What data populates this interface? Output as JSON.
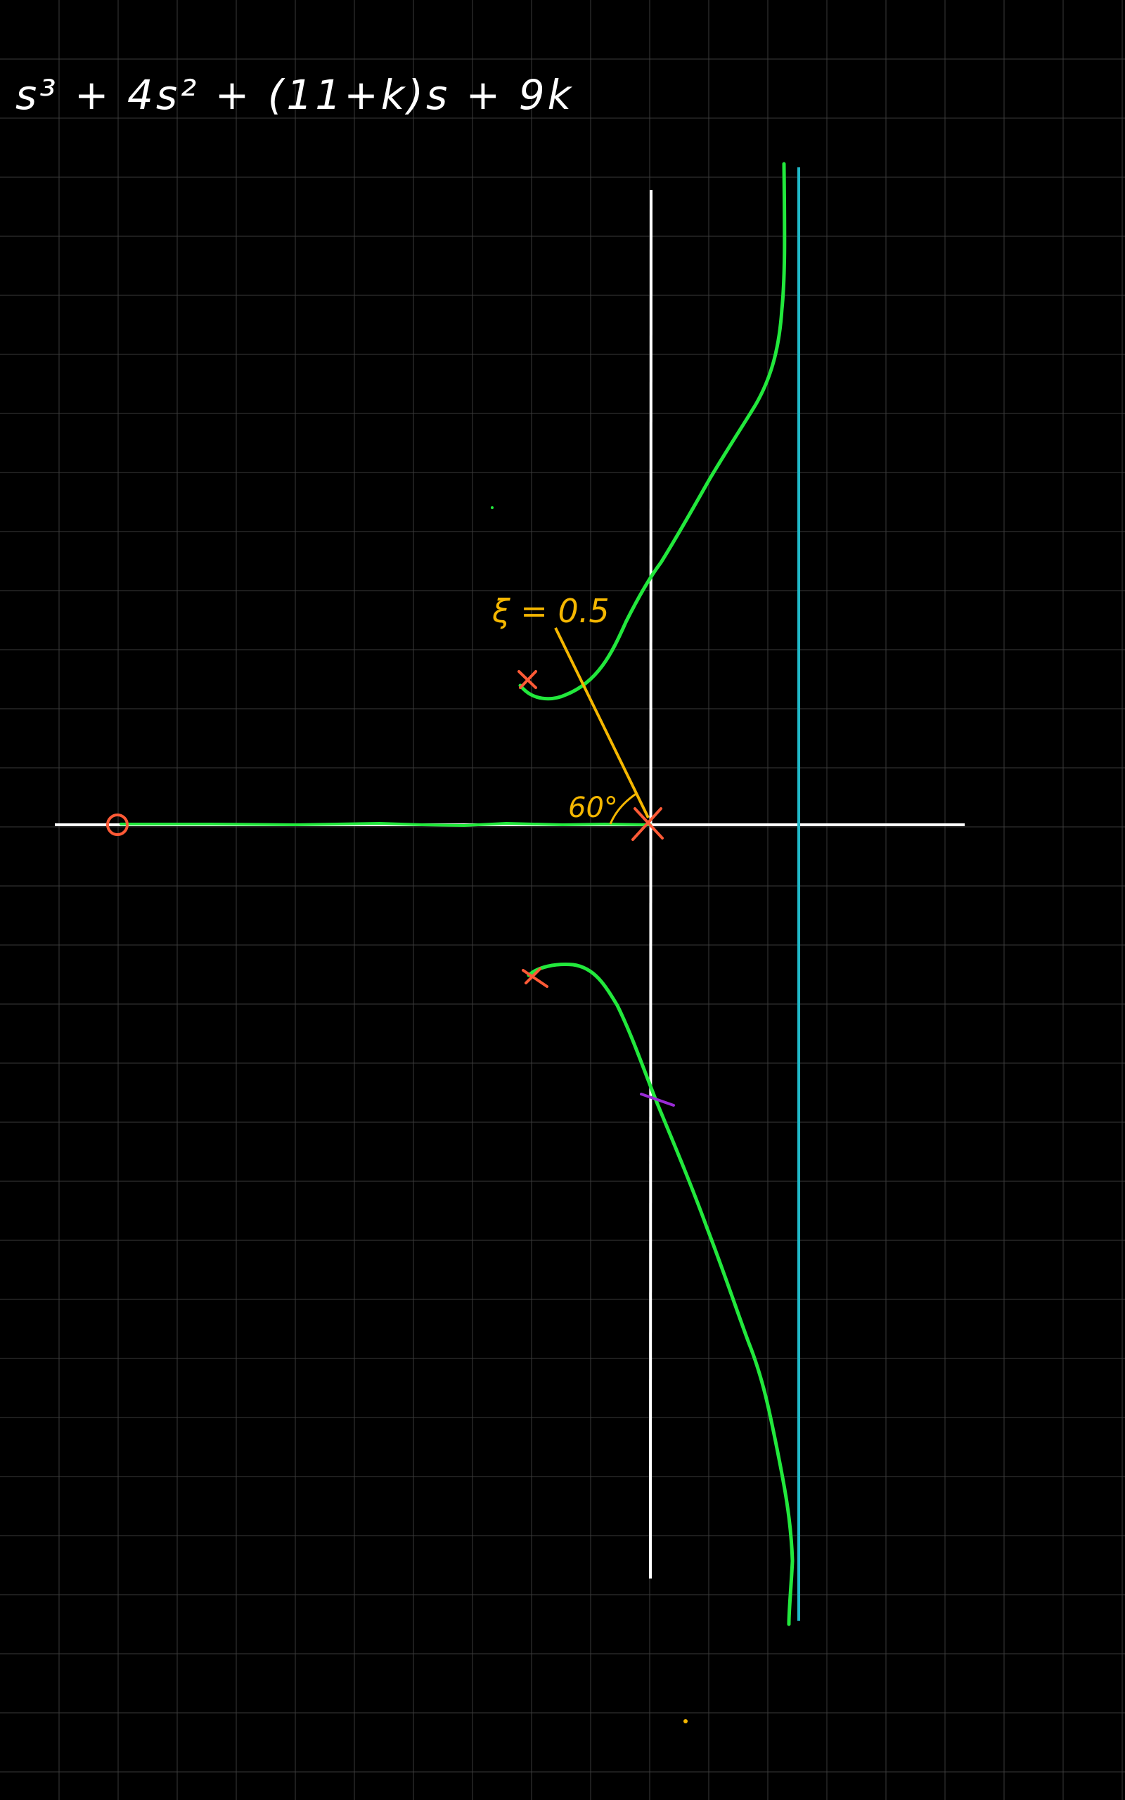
{
  "whiteboard": {
    "background_color": "#000000",
    "grid_color": "#3a3a3a",
    "equation": {
      "text": "s³ + 4s² + (11+k)s + 9k",
      "color": "#ffffff"
    },
    "axes": {
      "color": "#ffffff"
    },
    "root_locus": {
      "color": "#22e83c"
    },
    "asymptote": {
      "color": "#1fb8c8"
    },
    "damping_line": {
      "color": "#f5b700",
      "zeta_label": "ξ = 0.5",
      "angle_label": "60°"
    },
    "poles": {
      "color": "#ff5a36",
      "count": 3
    },
    "zero": {
      "color": "#ff5a36",
      "count": 1
    },
    "crossing_mark": {
      "color": "#9a2bd6"
    }
  }
}
